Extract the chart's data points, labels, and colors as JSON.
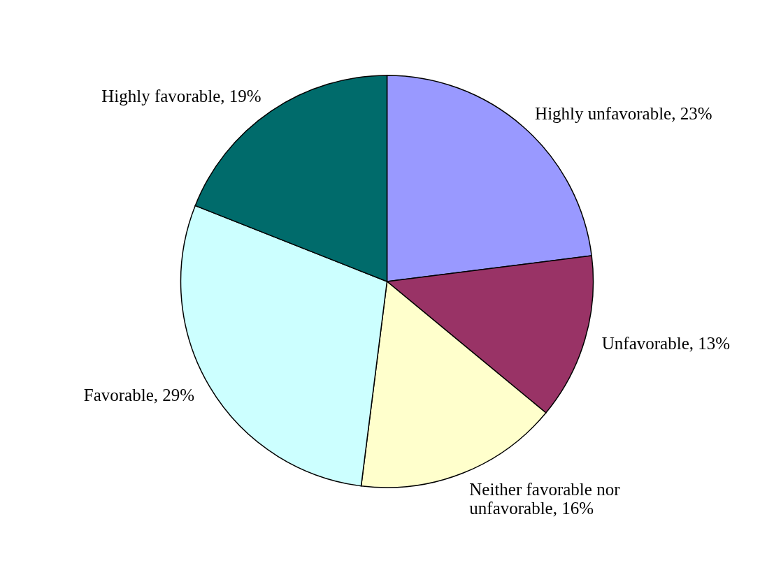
{
  "chart_data": {
    "type": "pie",
    "categories": [
      "Highly unfavorable",
      "Unfavorable",
      "Neither favorable nor unfavorable",
      "Favorable",
      "Highly favorable"
    ],
    "values": [
      23,
      13,
      16,
      29,
      19
    ],
    "colors": [
      "#9999ff",
      "#993366",
      "#ffffcc",
      "#ccffff",
      "#006b6b"
    ],
    "value_labels": [
      "23%",
      "13%",
      "16%",
      "29%",
      "19%"
    ]
  }
}
